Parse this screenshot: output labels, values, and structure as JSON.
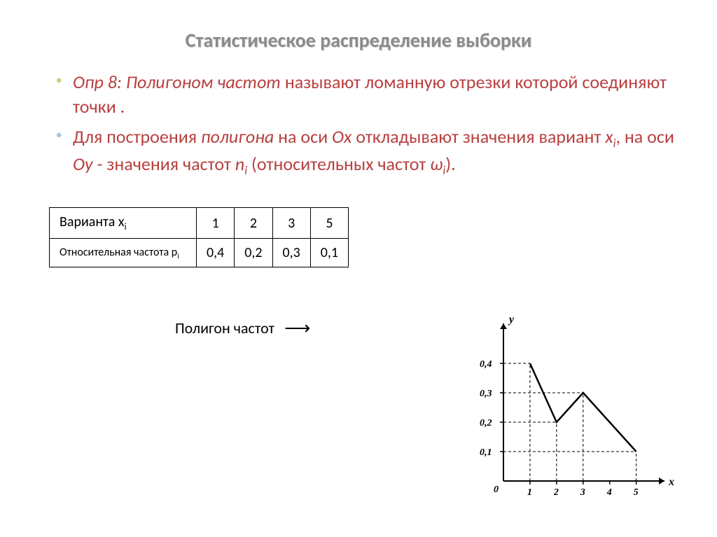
{
  "title": "Статистическое распределение выборки",
  "bullet1": {
    "prefix": "Опр 8: ",
    "term": "Полигоном частот ",
    "rest": "называют ломанную отрезки которой соединяют точки ."
  },
  "bullet2": {
    "part1": "Для построения ",
    "term": "полигона",
    "part2": " на оси ",
    "ox": "Ох",
    "part3": " откладывают значения вариант ",
    "xi": "x",
    "xi_sub": "i",
    "part4": ", на оси ",
    "oy": "Оу",
    "part5": " - значения частот ",
    "ni": "n",
    "ni_sub": "i",
    "part6": " (относительных частот ",
    "wi": "ω",
    "wi_sub": "i",
    "part7": ")."
  },
  "table": {
    "row1_label": "Варианта x",
    "row1_sub": "i",
    "row2_label": "Относительная частота p",
    "row2_sub": "i",
    "x_values": [
      "1",
      "2",
      "3",
      "5"
    ],
    "p_values": [
      "0,4",
      "0,2",
      "0,3",
      "0,1"
    ]
  },
  "caption": "Полигон частот",
  "chart": {
    "type": "line",
    "x_label": "x",
    "y_label": "y",
    "origin_label": "0",
    "x_ticks": [
      1,
      2,
      3,
      4,
      5
    ],
    "y_ticks": [
      0.1,
      0.2,
      0.3,
      0.4
    ],
    "y_tick_labels": [
      "0,1",
      "0,2",
      "0,3",
      "0,4"
    ],
    "points": [
      {
        "x": 1,
        "y": 0.4
      },
      {
        "x": 2,
        "y": 0.2
      },
      {
        "x": 3,
        "y": 0.3
      },
      {
        "x": 5,
        "y": 0.1
      }
    ],
    "axis_color": "#000000",
    "line_color": "#000000",
    "line_width": 2.5,
    "xlim": [
      0,
      5.8
    ],
    "ylim": [
      0,
      0.5
    ]
  }
}
